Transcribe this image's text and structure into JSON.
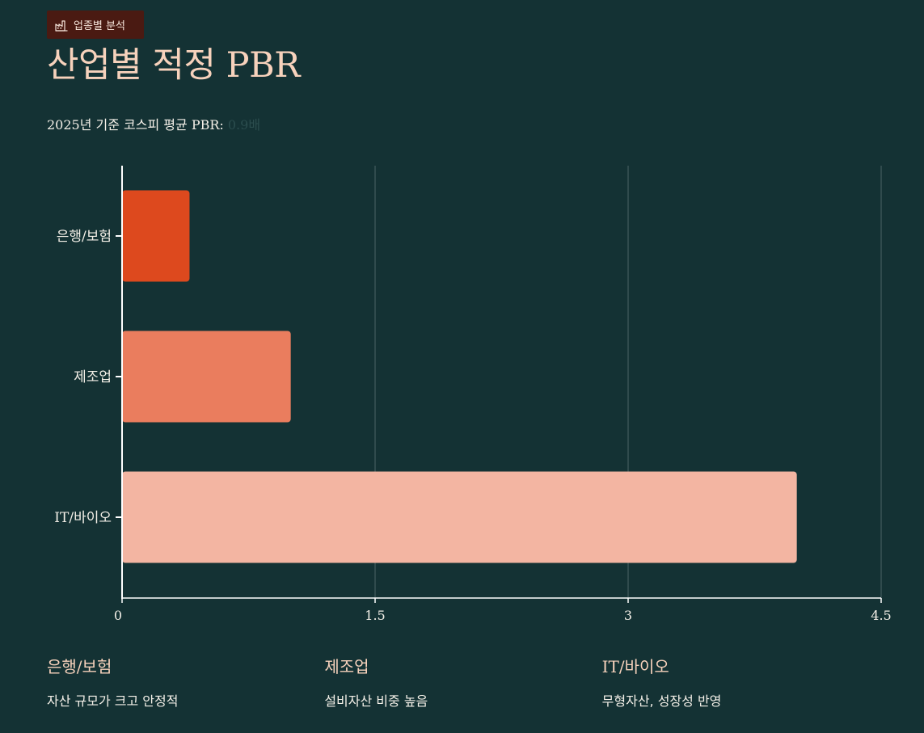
{
  "header": {
    "tag_icon": "factory-icon",
    "tag_label": "업종별 분석",
    "title": "산업별 적정 PBR",
    "subtitle_prefix": "2025년 기준 코스피 평균 PBR: ",
    "subtitle_value": "0.9배"
  },
  "colors": {
    "background": "#143234",
    "tag_background": "#4a1a12",
    "title": "#f7d2bc",
    "bar_1": "#dd491e",
    "bar_2": "#ea7d5e",
    "bar_3": "#f3b5a2"
  },
  "chart_data": {
    "type": "bar",
    "orientation": "horizontal",
    "categories": [
      "은행/보험",
      "제조업",
      "IT/바이오"
    ],
    "values": [
      0.4,
      1.0,
      4.0
    ],
    "xlim": [
      0,
      4.5
    ],
    "xticks": [
      "0",
      "1.5",
      "3",
      "4.5"
    ],
    "grid": "vertical",
    "legend": "none"
  },
  "notes": [
    {
      "title": "은행/보험",
      "desc": "자산 규모가 크고 안정적"
    },
    {
      "title": "제조업",
      "desc": "설비자산 비중 높음"
    },
    {
      "title": "IT/바이오",
      "desc": "무형자산, 성장성 반영"
    }
  ]
}
